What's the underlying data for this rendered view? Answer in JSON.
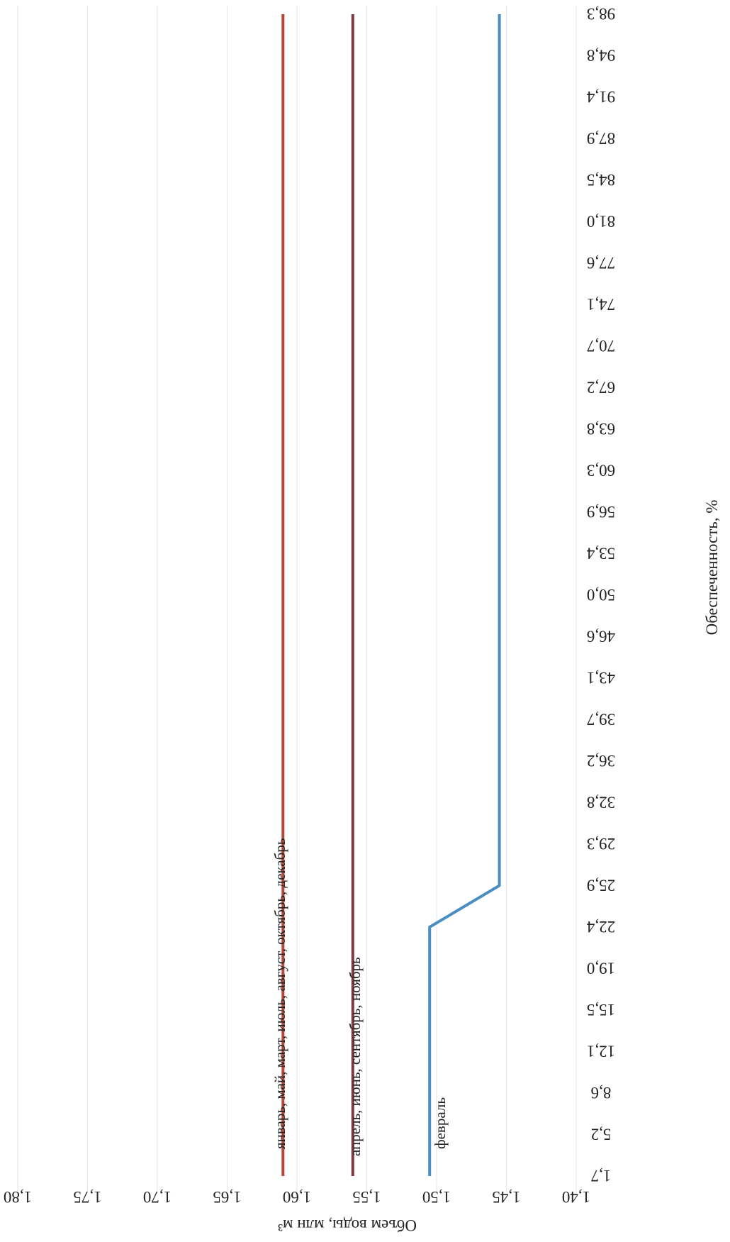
{
  "chart_data": {
    "type": "line",
    "xlabel": "Обеспеченность, %",
    "ylabel": "Объем воды, млн м³",
    "ylim": [
      1.4,
      1.8
    ],
    "yticks": [
      "1,40",
      "1,45",
      "1,50",
      "1,55",
      "1,60",
      "1,65",
      "1,70",
      "1,75",
      "1,80"
    ],
    "categories": [
      "1,7",
      "5,2",
      "8,6",
      "12,1",
      "15,5",
      "19,0",
      "22,4",
      "25,9",
      "29,3",
      "32,8",
      "36,2",
      "39,7",
      "43,1",
      "46,6",
      "50,0",
      "53,4",
      "56,9",
      "60,3",
      "63,8",
      "67,2",
      "70,7",
      "74,1",
      "77,6",
      "81,0",
      "84,5",
      "87,9",
      "91,4",
      "94,8",
      "98,3"
    ],
    "grid": true,
    "orientation": "rotated-90",
    "series": [
      {
        "name": "январь, май, март, июль, август, октябрь, декабрь",
        "color": "#b5483a",
        "values": [
          1.61,
          1.61,
          1.61,
          1.61,
          1.61,
          1.61,
          1.61,
          1.61,
          1.61,
          1.61,
          1.61,
          1.61,
          1.61,
          1.61,
          1.61,
          1.61,
          1.61,
          1.61,
          1.61,
          1.61,
          1.61,
          1.61,
          1.61,
          1.61,
          1.61,
          1.61,
          1.61,
          1.61,
          1.61
        ]
      },
      {
        "name": "апрель, июнь, сентябрь, ноябрь",
        "color": "#7d3a45",
        "values": [
          1.56,
          1.56,
          1.56,
          1.56,
          1.56,
          1.56,
          1.56,
          1.56,
          1.56,
          1.56,
          1.56,
          1.56,
          1.56,
          1.56,
          1.56,
          1.56,
          1.56,
          1.56,
          1.56,
          1.56,
          1.56,
          1.56,
          1.56,
          1.56,
          1.56,
          1.56,
          1.56,
          1.56,
          1.56
        ]
      },
      {
        "name": "февраль",
        "color": "#4a8ec2",
        "values": [
          1.505,
          1.505,
          1.505,
          1.505,
          1.505,
          1.505,
          1.505,
          1.455,
          1.455,
          1.455,
          1.455,
          1.455,
          1.455,
          1.455,
          1.455,
          1.455,
          1.455,
          1.455,
          1.455,
          1.455,
          1.455,
          1.455,
          1.455,
          1.455,
          1.455,
          1.455,
          1.455,
          1.455,
          1.455
        ]
      }
    ]
  }
}
